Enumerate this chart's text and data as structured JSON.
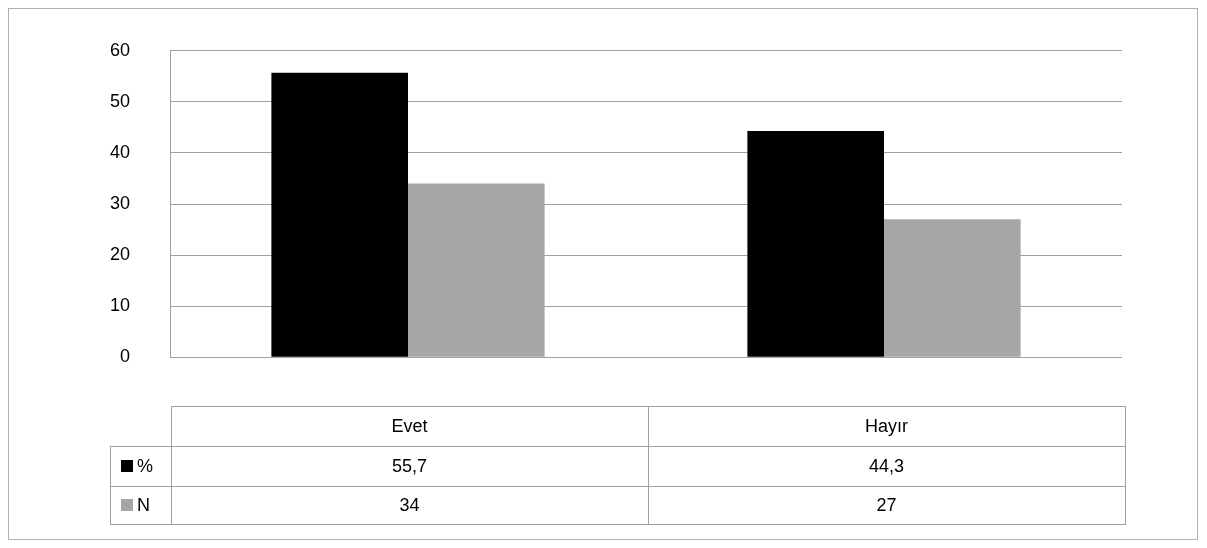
{
  "chart_data": {
    "type": "bar",
    "categories": [
      "Evet",
      "Hayır"
    ],
    "series": [
      {
        "name": "%",
        "color": "#000000",
        "values": [
          55.7,
          44.3
        ],
        "value_labels": [
          "55,7",
          "44,3"
        ]
      },
      {
        "name": "N",
        "color": "#a6a6a6",
        "values": [
          34,
          27
        ],
        "value_labels": [
          "34",
          "27"
        ]
      }
    ],
    "ylim": [
      0,
      60
    ],
    "yticks": [
      0,
      10,
      20,
      30,
      40,
      50,
      60
    ],
    "grid": "y",
    "legend": "bottom left"
  }
}
